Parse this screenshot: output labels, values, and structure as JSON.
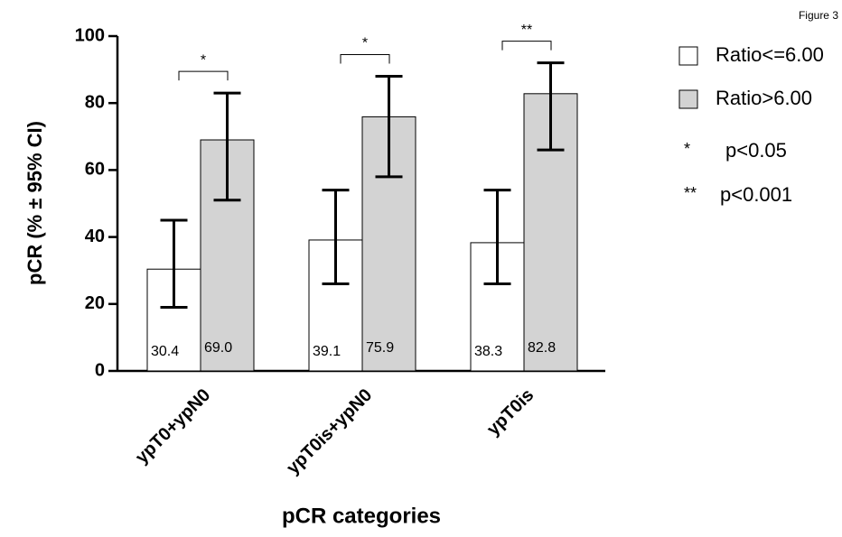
{
  "chart_data": {
    "type": "bar",
    "figure_label": "Figure 3",
    "x_label": "pCR categories",
    "y_label": "pCR (% ± 95% CI)",
    "categories": [
      "ypT0+ypN0",
      "ypT0is+ypN0",
      "ypT0is"
    ],
    "series": [
      {
        "name": "Ratio<=6.00",
        "color": "#ffffff",
        "values": [
          30.4,
          39.1,
          38.3
        ],
        "value_labels": [
          "30.4",
          "39.1",
          "38.3"
        ],
        "ci_low": [
          19,
          26,
          26
        ],
        "ci_high": [
          45,
          54,
          54
        ]
      },
      {
        "name": "Ratio>6.00",
        "color": "#d3d3d3",
        "values": [
          69.0,
          75.9,
          82.8
        ],
        "value_labels": [
          "69.0",
          "75.9",
          "82.8"
        ],
        "ci_low": [
          51,
          58,
          66
        ],
        "ci_high": [
          83,
          88,
          92
        ]
      }
    ],
    "significance": [
      "*",
      "*",
      "**"
    ],
    "notes": [
      {
        "symbol": "*",
        "text": "p<0.05"
      },
      {
        "symbol": "**",
        "text": "p<0.001"
      }
    ],
    "ylim": [
      0,
      100
    ],
    "yticks": [
      0,
      20,
      40,
      60,
      80,
      100
    ],
    "legend": "right"
  }
}
